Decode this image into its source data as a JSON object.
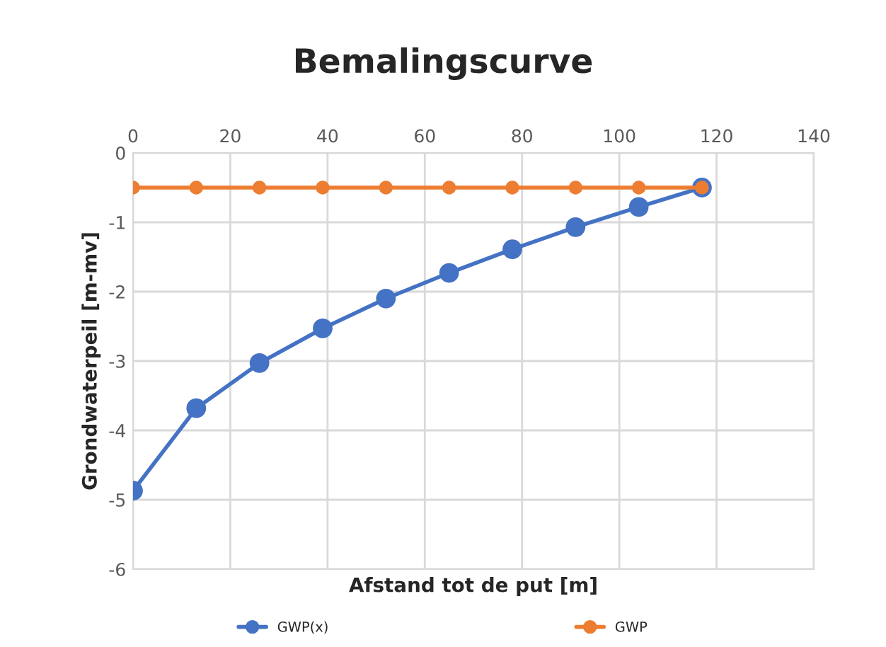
{
  "chart_data": {
    "type": "line",
    "title": "Bemalingscurve",
    "xlabel": "Afstand tot de put [m]",
    "ylabel": "Grondwaterpeil [m-mv]",
    "x": [
      0,
      13,
      26,
      39,
      52,
      65,
      78,
      91,
      104,
      117
    ],
    "series": [
      {
        "name": "GWP(x)",
        "color": "#4472c4",
        "values": [
          -4.87,
          -3.68,
          -3.03,
          -2.53,
          -2.1,
          -1.73,
          -1.39,
          -1.07,
          -0.78,
          -0.5
        ]
      },
      {
        "name": "GWP",
        "color": "#ed7d31",
        "values": [
          -0.5,
          -0.5,
          -0.5,
          -0.5,
          -0.5,
          -0.5,
          -0.5,
          -0.5,
          -0.5,
          -0.5
        ]
      }
    ],
    "xlim": [
      0,
      140
    ],
    "xticks": [
      0,
      20,
      40,
      60,
      80,
      100,
      120,
      140
    ],
    "ylim": [
      -6,
      0
    ],
    "yticks": [
      0,
      -1,
      -2,
      -3,
      -4,
      -5,
      -6
    ],
    "grid": true,
    "legend": "bottom",
    "marker": "circle",
    "line_style": "solid"
  }
}
